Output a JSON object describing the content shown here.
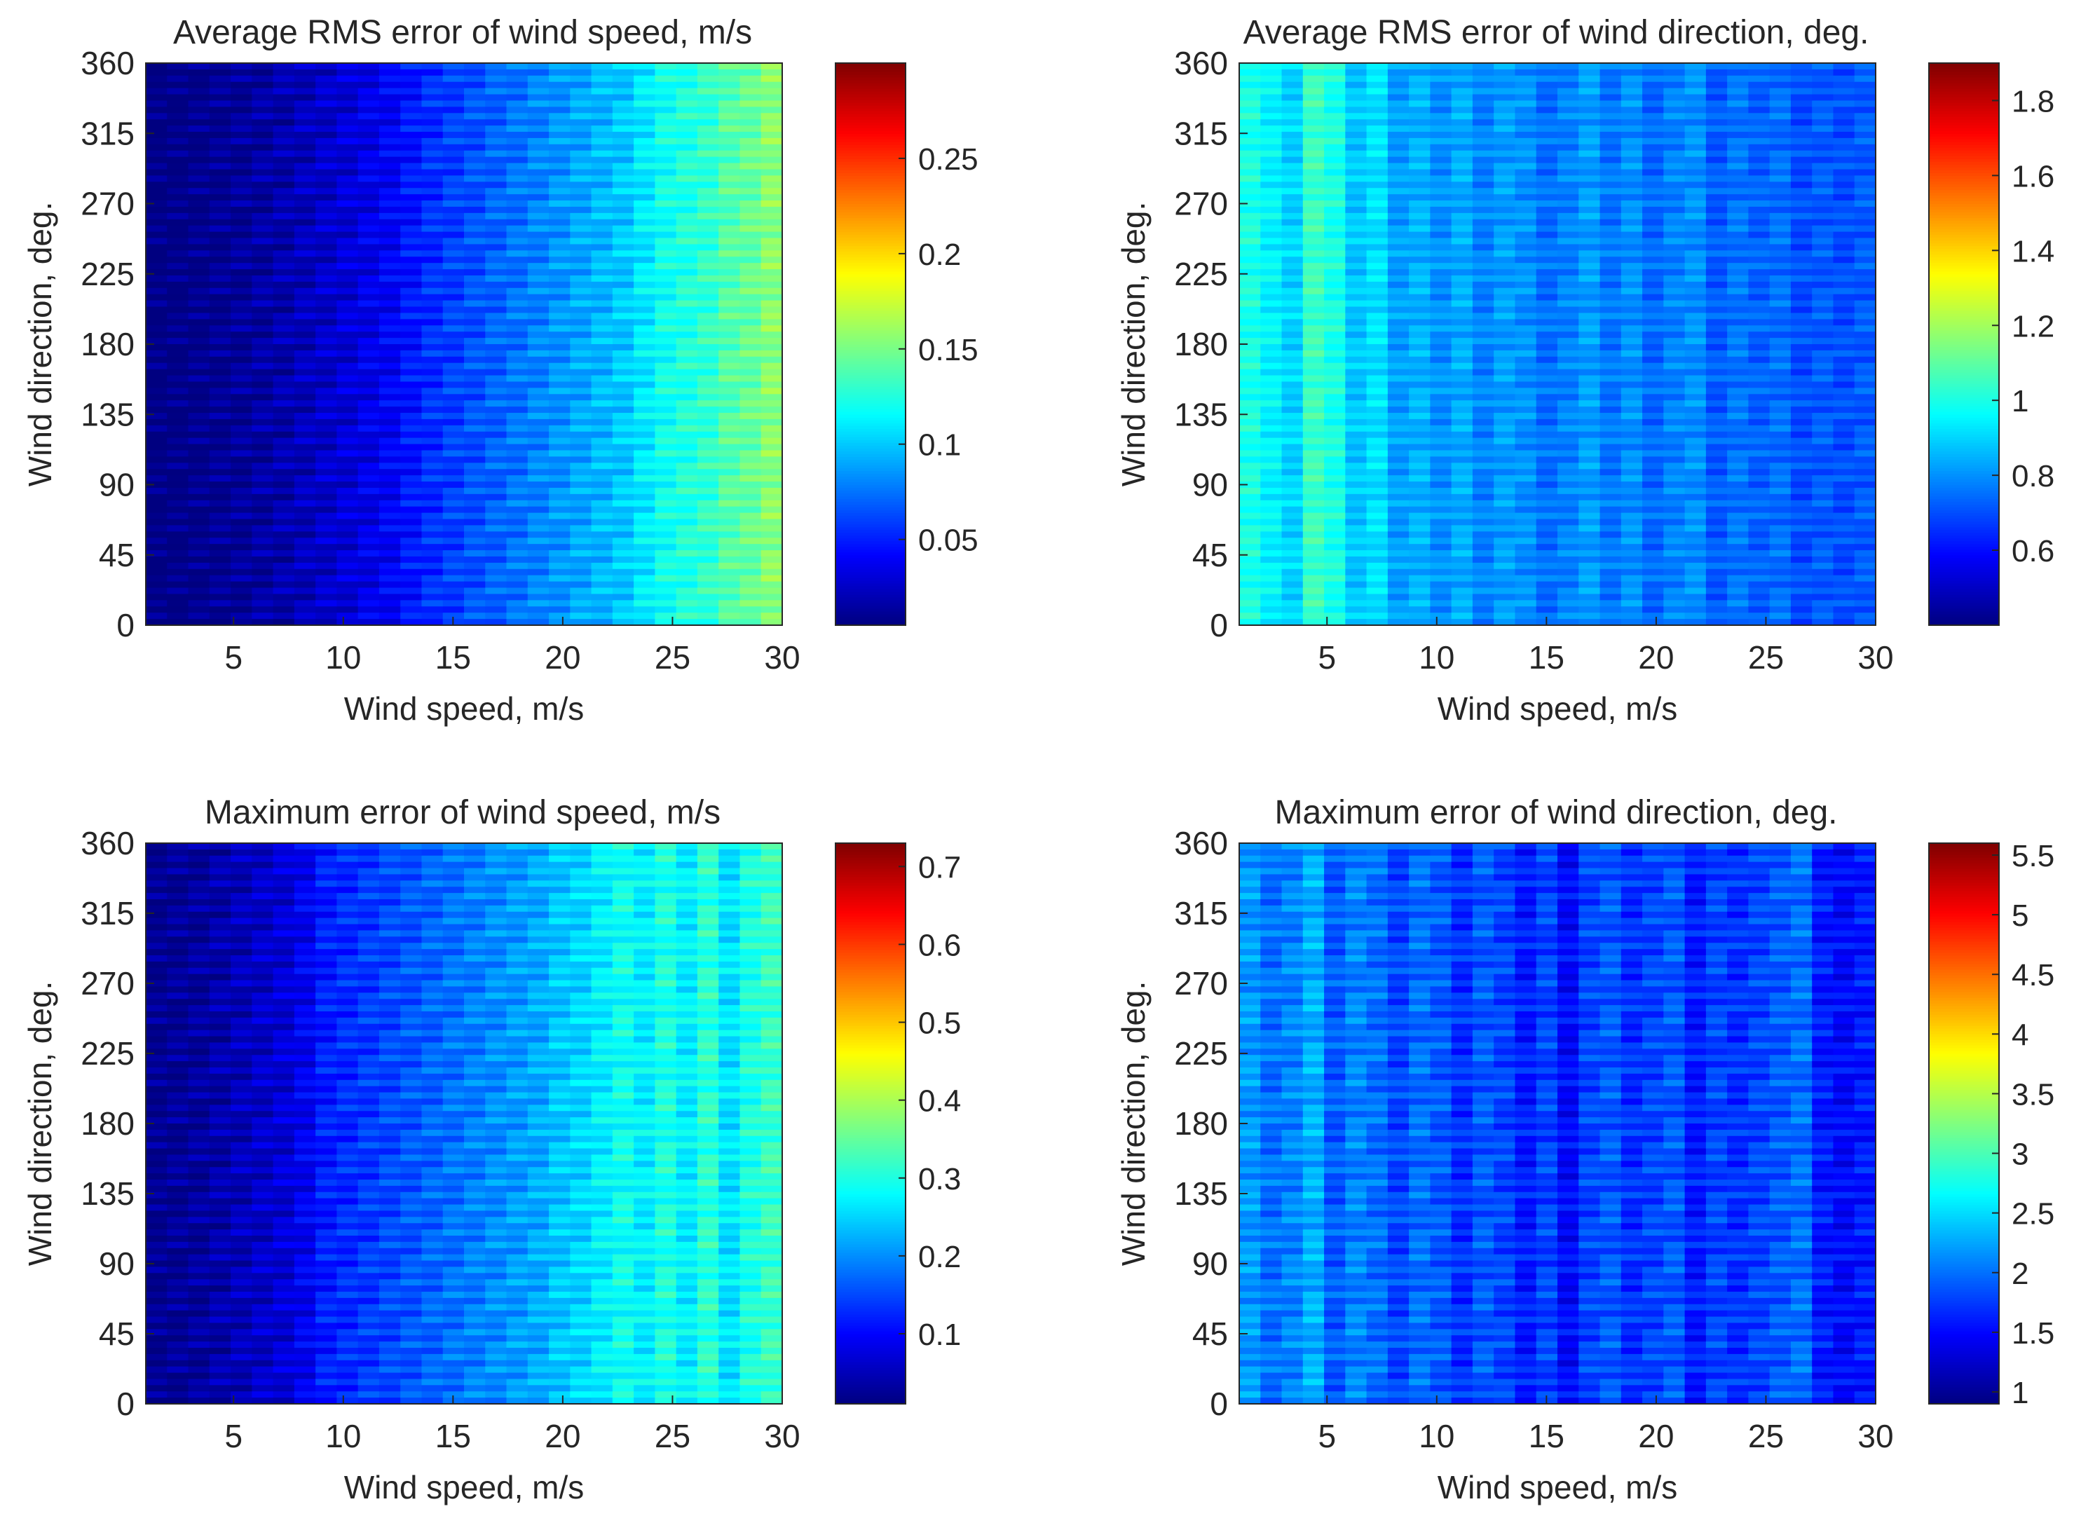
{
  "chart_data": [
    {
      "type": "heatmap",
      "title": "Average RMS error of wind speed, m/s",
      "xlabel": "Wind speed, m/s",
      "ylabel": "Wind direction, deg.",
      "xlim": [
        1,
        30
      ],
      "ylim": [
        0,
        360
      ],
      "xticks": [
        "5",
        "10",
        "15",
        "20",
        "25",
        "30"
      ],
      "yticks": [
        "0",
        "45",
        "90",
        "135",
        "180",
        "225",
        "270",
        "315",
        "360"
      ],
      "colorbar": {
        "range": [
          0.005,
          0.3
        ],
        "ticks": [
          "0.05",
          "0.1",
          "0.15",
          "0.2",
          "0.25"
        ],
        "colormap": "jet"
      },
      "column_values": [
        0.005,
        0.006,
        0.008,
        0.01,
        0.012,
        0.015,
        0.018,
        0.022,
        0.026,
        0.03,
        0.035,
        0.04,
        0.048,
        0.055,
        0.06,
        0.065,
        0.07,
        0.075,
        0.08,
        0.085,
        0.09,
        0.095,
        0.1,
        0.11,
        0.12,
        0.125,
        0.13,
        0.14,
        0.145,
        0.155
      ],
      "row_ripple": 0.012
    },
    {
      "type": "heatmap",
      "title": "Average RMS error of wind direction, deg.",
      "xlabel": "Wind speed, m/s",
      "ylabel": "Wind direction, deg.",
      "xlim": [
        1,
        30
      ],
      "ylim": [
        0,
        360
      ],
      "xticks": [
        "5",
        "10",
        "15",
        "20",
        "25",
        "30"
      ],
      "yticks": [
        "0",
        "45",
        "90",
        "135",
        "180",
        "225",
        "270",
        "315",
        "360"
      ],
      "colorbar": {
        "range": [
          0.4,
          1.9
        ],
        "ticks": [
          "0.6",
          "0.8",
          "1",
          "1.2",
          "1.4",
          "1.6",
          "1.8"
        ],
        "colormap": "jet"
      },
      "column_values": [
        1.0,
        0.95,
        0.9,
        1.05,
        1.0,
        0.88,
        0.92,
        0.82,
        0.85,
        0.8,
        0.84,
        0.78,
        0.82,
        0.8,
        0.75,
        0.78,
        0.82,
        0.76,
        0.8,
        0.74,
        0.78,
        0.8,
        0.72,
        0.76,
        0.73,
        0.75,
        0.7,
        0.72,
        0.7,
        0.72
      ],
      "row_ripple": 0.05
    },
    {
      "type": "heatmap",
      "title": "Maximum error of wind speed, m/s",
      "xlabel": "Wind speed, m/s",
      "ylabel": "Wind direction, deg.",
      "xlim": [
        1,
        30
      ],
      "ylim": [
        0,
        360
      ],
      "xticks": [
        "5",
        "10",
        "15",
        "20",
        "25",
        "30"
      ],
      "yticks": [
        "0",
        "45",
        "90",
        "135",
        "180",
        "225",
        "270",
        "315",
        "360"
      ],
      "colorbar": {
        "range": [
          0.01,
          0.73
        ],
        "ticks": [
          "0.1",
          "0.2",
          "0.3",
          "0.4",
          "0.5",
          "0.6",
          "0.7"
        ],
        "colormap": "jet"
      },
      "column_values": [
        0.02,
        0.025,
        0.03,
        0.04,
        0.05,
        0.06,
        0.07,
        0.09,
        0.12,
        0.13,
        0.14,
        0.15,
        0.16,
        0.17,
        0.18,
        0.19,
        0.2,
        0.21,
        0.22,
        0.24,
        0.25,
        0.27,
        0.29,
        0.27,
        0.3,
        0.27,
        0.31,
        0.26,
        0.3,
        0.32
      ],
      "row_ripple": 0.03
    },
    {
      "type": "heatmap",
      "title": "Maximum error of wind direction, deg.",
      "xlabel": "Wind speed, m/s",
      "ylabel": "Wind direction, deg.",
      "xlim": [
        1,
        30
      ],
      "ylim": [
        0,
        360
      ],
      "xticks": [
        "5",
        "10",
        "15",
        "20",
        "25",
        "30"
      ],
      "yticks": [
        "0",
        "45",
        "90",
        "135",
        "180",
        "225",
        "270",
        "315",
        "360"
      ],
      "colorbar": {
        "range": [
          0.9,
          5.6
        ],
        "ticks": [
          "1",
          "1.5",
          "2",
          "2.5",
          "3",
          "3.5",
          "4",
          "4.5",
          "5",
          "5.5"
        ],
        "colormap": "jet"
      },
      "column_values": [
        2.2,
        2.0,
        2.1,
        2.3,
        1.9,
        2.1,
        2.0,
        1.8,
        2.0,
        1.9,
        1.7,
        1.9,
        1.8,
        1.6,
        1.8,
        1.5,
        1.8,
        1.9,
        1.7,
        1.8,
        1.9,
        1.6,
        1.8,
        1.7,
        1.8,
        1.9,
        2.0,
        1.6,
        1.5,
        1.6
      ],
      "row_ripple": 0.2
    }
  ]
}
